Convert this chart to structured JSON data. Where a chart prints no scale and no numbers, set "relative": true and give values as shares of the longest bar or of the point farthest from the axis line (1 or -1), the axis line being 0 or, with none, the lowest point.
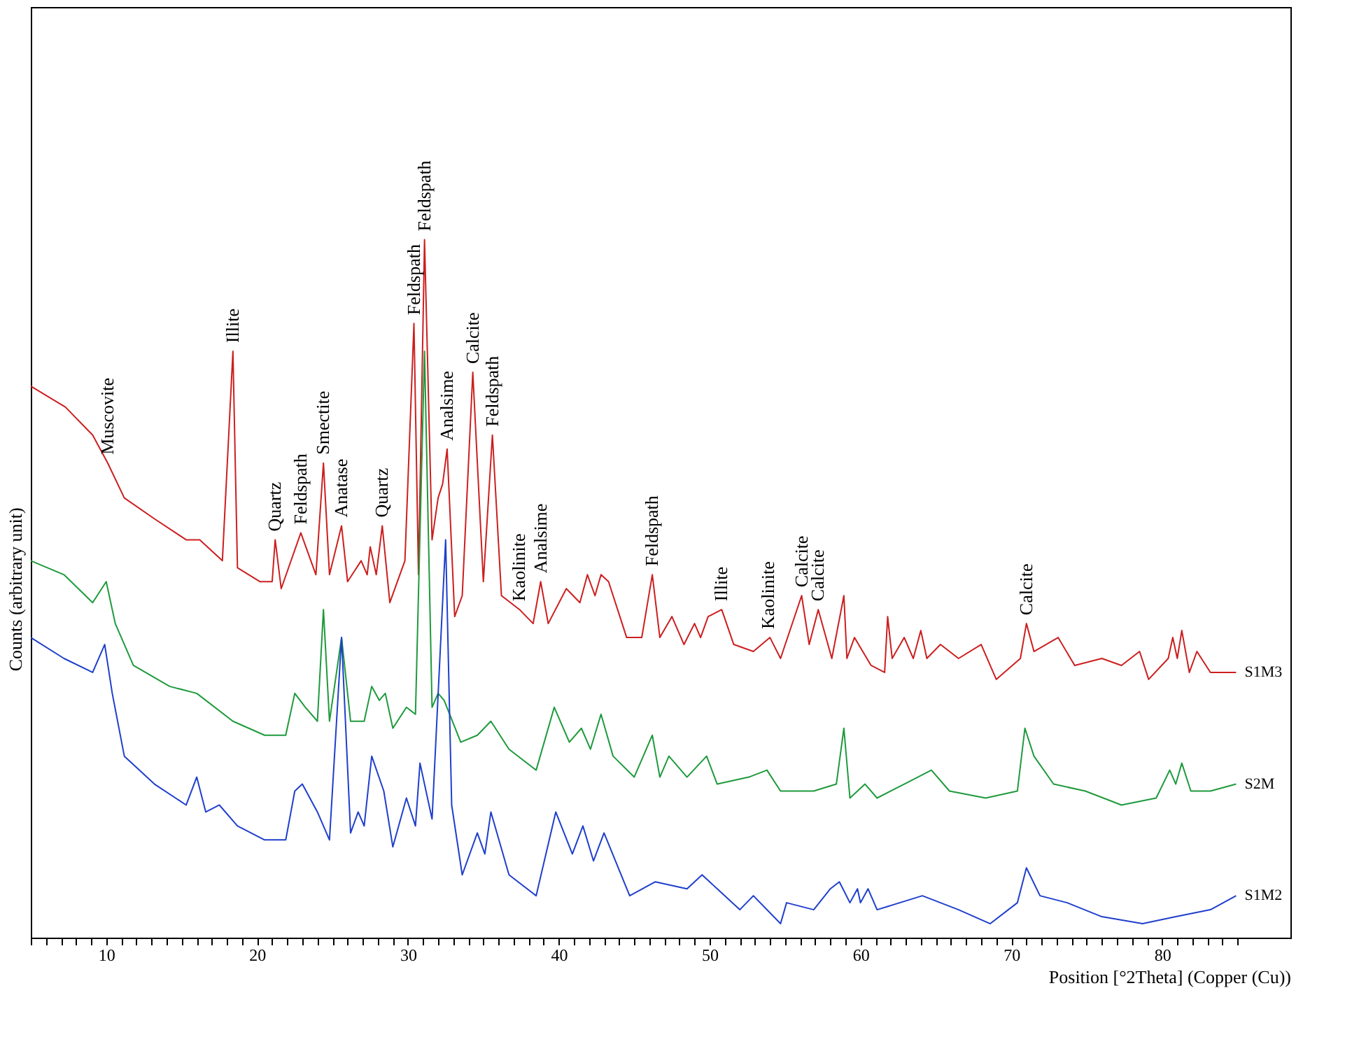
{
  "chart_data": {
    "type": "line",
    "relative": true,
    "xlabel": "Position [°2Theta] (Copper (Cu))",
    "ylabel": "Counts (arbitrary unit)",
    "xlim": [
      5,
      88.5
    ],
    "xticks": [
      {
        "value": 5,
        "label": null
      },
      {
        "value": 6,
        "label": null
      },
      {
        "value": 7,
        "label": null
      },
      {
        "value": 8,
        "label": null
      },
      {
        "value": 9,
        "label": null
      },
      10,
      {
        "value": 11,
        "label": null
      },
      {
        "value": 12,
        "label": null
      },
      {
        "value": 13,
        "label": null
      },
      {
        "value": 14,
        "label": null
      },
      {
        "value": 15,
        "label": null
      },
      {
        "value": 16,
        "label": null
      },
      {
        "value": 17,
        "label": null
      },
      {
        "value": 18,
        "label": null
      },
      {
        "value": 19,
        "label": null
      },
      20,
      {
        "value": 21,
        "label": null
      },
      {
        "value": 22,
        "label": null
      },
      {
        "value": 23,
        "label": null
      },
      {
        "value": 24,
        "label": null
      },
      {
        "value": 25,
        "label": null
      },
      {
        "value": 26,
        "label": null
      },
      {
        "value": 27,
        "label": null
      },
      {
        "value": 28,
        "label": null
      },
      {
        "value": 29,
        "label": null
      },
      30,
      {
        "value": 31,
        "label": null
      },
      {
        "value": 32,
        "label": null
      },
      {
        "value": 33,
        "label": null
      },
      {
        "value": 34,
        "label": null
      },
      {
        "value": 35,
        "label": null
      },
      {
        "value": 36,
        "label": null
      },
      {
        "value": 37,
        "label": null
      },
      {
        "value": 38,
        "label": null
      },
      {
        "value": 39,
        "label": null
      },
      40,
      {
        "value": 41,
        "label": null
      },
      {
        "value": 42,
        "label": null
      },
      {
        "value": 43,
        "label": null
      },
      {
        "value": 44,
        "label": null
      },
      {
        "value": 45,
        "label": null
      },
      {
        "value": 46,
        "label": null
      },
      {
        "value": 47,
        "label": null
      },
      {
        "value": 48,
        "label": null
      },
      {
        "value": 49,
        "label": null
      },
      50,
      {
        "value": 51,
        "label": null
      },
      {
        "value": 52,
        "label": null
      },
      {
        "value": 53,
        "label": null
      },
      {
        "value": 54,
        "label": null
      },
      {
        "value": 55,
        "label": null
      },
      {
        "value": 56,
        "label": null
      },
      {
        "value": 57,
        "label": null
      },
      {
        "value": 58,
        "label": null
      },
      {
        "value": 59,
        "label": null
      },
      60,
      {
        "value": 61,
        "label": null
      },
      {
        "value": 62,
        "label": null
      },
      {
        "value": 63,
        "label": null
      },
      {
        "value": 64,
        "label": null
      },
      {
        "value": 65,
        "label": null
      },
      {
        "value": 66,
        "label": null
      },
      {
        "value": 67,
        "label": null
      },
      {
        "value": 68,
        "label": null
      },
      {
        "value": 69,
        "label": null
      },
      70,
      {
        "value": 71,
        "label": null
      },
      {
        "value": 72,
        "label": null
      },
      {
        "value": 73,
        "label": null
      },
      {
        "value": 74,
        "label": null
      },
      {
        "value": 75,
        "label": null
      },
      {
        "value": 76,
        "label": null
      },
      {
        "value": 77,
        "label": null
      },
      {
        "value": 78,
        "label": null
      },
      {
        "value": 79,
        "label": null
      },
      80,
      {
        "value": 81,
        "label": null
      },
      {
        "value": 82,
        "label": null
      },
      {
        "value": 83,
        "label": null
      },
      {
        "value": 84,
        "label": null
      },
      {
        "value": 85,
        "label": null
      }
    ],
    "series": [
      {
        "name": "S1M3",
        "color": "#cc1f1f",
        "x": [
          5.0,
          7.3,
          9.1,
          10.1,
          11.2,
          13.2,
          15.3,
          16.2,
          17.7,
          18.4,
          18.7,
          20.2,
          21.0,
          21.2,
          21.6,
          22.9,
          23.9,
          24.4,
          24.8,
          25.6,
          26.0,
          26.9,
          27.3,
          27.5,
          27.9,
          28.3,
          28.8,
          29.8,
          30.4,
          30.7,
          31.1,
          31.6,
          32.0,
          32.3,
          32.6,
          33.1,
          33.6,
          34.3,
          35.0,
          35.6,
          36.2,
          37.4,
          38.3,
          38.8,
          39.3,
          40.5,
          41.4,
          41.9,
          42.4,
          42.8,
          43.3,
          44.5,
          45.5,
          46.2,
          46.7,
          47.5,
          48.3,
          49.0,
          49.4,
          49.9,
          50.8,
          51.6,
          52.9,
          54.0,
          54.7,
          56.1,
          56.6,
          57.2,
          58.1,
          58.9,
          59.1,
          59.6,
          60.7,
          61.6,
          61.8,
          62.1,
          62.9,
          63.5,
          64.0,
          64.4,
          65.3,
          66.5,
          68.0,
          69.0,
          70.6,
          71.0,
          71.5,
          73.1,
          74.2,
          76.0,
          77.3,
          78.5,
          79.1,
          80.4,
          80.7,
          81.0,
          81.3,
          81.8,
          82.3,
          83.2,
          84.9
        ],
        "values": [
          0.79,
          0.76,
          0.72,
          0.68,
          0.63,
          0.6,
          0.57,
          0.57,
          0.54,
          0.84,
          0.53,
          0.51,
          0.51,
          0.57,
          0.5,
          0.58,
          0.52,
          0.68,
          0.52,
          0.59,
          0.51,
          0.54,
          0.52,
          0.56,
          0.52,
          0.59,
          0.48,
          0.54,
          0.88,
          0.52,
          1.0,
          0.57,
          0.63,
          0.65,
          0.7,
          0.46,
          0.49,
          0.81,
          0.51,
          0.72,
          0.49,
          0.47,
          0.45,
          0.51,
          0.45,
          0.5,
          0.48,
          0.52,
          0.49,
          0.52,
          0.51,
          0.43,
          0.43,
          0.52,
          0.43,
          0.46,
          0.42,
          0.45,
          0.43,
          0.46,
          0.47,
          0.42,
          0.41,
          0.43,
          0.4,
          0.49,
          0.42,
          0.47,
          0.4,
          0.49,
          0.4,
          0.43,
          0.39,
          0.38,
          0.46,
          0.4,
          0.43,
          0.4,
          0.44,
          0.4,
          0.42,
          0.4,
          0.42,
          0.37,
          0.4,
          0.45,
          0.41,
          0.43,
          0.39,
          0.4,
          0.39,
          0.41,
          0.37,
          0.4,
          0.43,
          0.4,
          0.44,
          0.38,
          0.41,
          0.38,
          0.38
        ]
      },
      {
        "name": "S2M",
        "color": "#1e9a3c",
        "x": [
          5.0,
          7.2,
          9.1,
          10.0,
          10.6,
          11.8,
          14.2,
          16.0,
          18.4,
          20.5,
          21.9,
          22.5,
          23.2,
          24.0,
          24.4,
          24.8,
          25.6,
          26.2,
          27.1,
          27.6,
          28.1,
          28.5,
          29.0,
          29.9,
          30.5,
          31.1,
          31.6,
          32.0,
          32.4,
          33.5,
          34.6,
          35.5,
          36.7,
          38.5,
          39.7,
          40.7,
          41.5,
          42.1,
          42.8,
          43.6,
          45.0,
          46.2,
          46.7,
          47.3,
          48.5,
          49.8,
          50.5,
          52.6,
          53.8,
          54.7,
          55.1,
          56.9,
          58.4,
          58.9,
          59.3,
          60.3,
          61.1,
          62.9,
          64.7,
          65.9,
          68.3,
          70.4,
          70.9,
          71.5,
          72.8,
          74.9,
          77.3,
          79.6,
          80.5,
          80.9,
          81.3,
          81.9,
          83.2,
          84.9
        ],
        "values": [
          0.54,
          0.52,
          0.48,
          0.51,
          0.45,
          0.39,
          0.36,
          0.35,
          0.31,
          0.29,
          0.29,
          0.35,
          0.33,
          0.31,
          0.47,
          0.31,
          0.43,
          0.31,
          0.31,
          0.36,
          0.34,
          0.35,
          0.3,
          0.33,
          0.32,
          0.84,
          0.33,
          0.35,
          0.34,
          0.28,
          0.29,
          0.31,
          0.27,
          0.24,
          0.33,
          0.28,
          0.3,
          0.27,
          0.32,
          0.26,
          0.23,
          0.29,
          0.23,
          0.26,
          0.23,
          0.26,
          0.22,
          0.23,
          0.24,
          0.21,
          0.21,
          0.21,
          0.22,
          0.3,
          0.2,
          0.22,
          0.2,
          0.22,
          0.24,
          0.21,
          0.2,
          0.21,
          0.3,
          0.26,
          0.22,
          0.21,
          0.19,
          0.2,
          0.24,
          0.22,
          0.25,
          0.21,
          0.21,
          0.22
        ]
      },
      {
        "name": "S1M2",
        "color": "#1f3fcc",
        "x": [
          5.0,
          7.2,
          9.1,
          9.9,
          10.4,
          11.2,
          13.2,
          15.3,
          16.0,
          16.6,
          17.5,
          18.7,
          20.5,
          21.9,
          22.5,
          23.0,
          24.0,
          24.8,
          25.6,
          26.2,
          26.7,
          27.1,
          27.6,
          28.4,
          29.0,
          29.9,
          30.5,
          30.8,
          31.6,
          32.5,
          32.9,
          33.6,
          34.6,
          35.1,
          35.5,
          36.7,
          38.5,
          39.8,
          40.9,
          41.6,
          42.3,
          43.0,
          44.7,
          46.4,
          48.5,
          49.5,
          52.0,
          52.9,
          54.7,
          55.1,
          56.9,
          58.0,
          58.6,
          59.3,
          59.8,
          60.0,
          60.5,
          61.1,
          64.1,
          66.5,
          68.6,
          70.4,
          71.0,
          71.9,
          73.7,
          76.0,
          78.7,
          80.9,
          83.2,
          84.9
        ],
        "values": [
          0.43,
          0.4,
          0.38,
          0.42,
          0.35,
          0.26,
          0.22,
          0.19,
          0.23,
          0.18,
          0.19,
          0.16,
          0.14,
          0.14,
          0.21,
          0.22,
          0.18,
          0.14,
          0.43,
          0.15,
          0.18,
          0.16,
          0.26,
          0.21,
          0.13,
          0.2,
          0.16,
          0.25,
          0.17,
          0.57,
          0.19,
          0.09,
          0.15,
          0.12,
          0.18,
          0.09,
          0.06,
          0.18,
          0.12,
          0.16,
          0.11,
          0.15,
          0.06,
          0.08,
          0.07,
          0.09,
          0.04,
          0.06,
          0.02,
          0.05,
          0.04,
          0.07,
          0.08,
          0.05,
          0.07,
          0.05,
          0.07,
          0.04,
          0.06,
          0.04,
          0.02,
          0.05,
          0.1,
          0.06,
          0.05,
          0.03,
          0.02,
          0.03,
          0.04,
          0.06
        ]
      }
    ],
    "annotations": [
      {
        "text": "Muscovite",
        "x": 10.1,
        "y": 0.68
      },
      {
        "text": "Illite",
        "x": 18.4,
        "y": 0.84
      },
      {
        "text": "Quartz",
        "x": 21.2,
        "y": 0.57
      },
      {
        "text": "Feldspath",
        "x": 22.9,
        "y": 0.58
      },
      {
        "text": "Smectite",
        "x": 24.4,
        "y": 0.68
      },
      {
        "text": "Anatase",
        "x": 25.6,
        "y": 0.59
      },
      {
        "text": "Quartz",
        "x": 28.3,
        "y": 0.59
      },
      {
        "text": "Feldspath",
        "x": 30.4,
        "y": 0.88
      },
      {
        "text": "Feldspath",
        "x": 31.1,
        "y": 1.0
      },
      {
        "text": "Analsime",
        "x": 32.6,
        "y": 0.7
      },
      {
        "text": "Calcite",
        "x": 34.3,
        "y": 0.81
      },
      {
        "text": "Feldspath",
        "x": 35.6,
        "y": 0.72
      },
      {
        "text": "Kaolinite",
        "x": 37.4,
        "y": 0.47
      },
      {
        "text": "Analsime",
        "x": 38.8,
        "y": 0.51
      },
      {
        "text": "Feldspath",
        "x": 46.2,
        "y": 0.52
      },
      {
        "text": "Illite",
        "x": 50.8,
        "y": 0.47
      },
      {
        "text": "Kaolinite",
        "x": 53.9,
        "y": 0.43
      },
      {
        "text": "Calcite",
        "x": 56.1,
        "y": 0.49
      },
      {
        "text": "Calcite",
        "x": 57.2,
        "y": 0.47
      },
      {
        "text": "Calcite",
        "x": 71.0,
        "y": 0.45
      }
    ]
  }
}
